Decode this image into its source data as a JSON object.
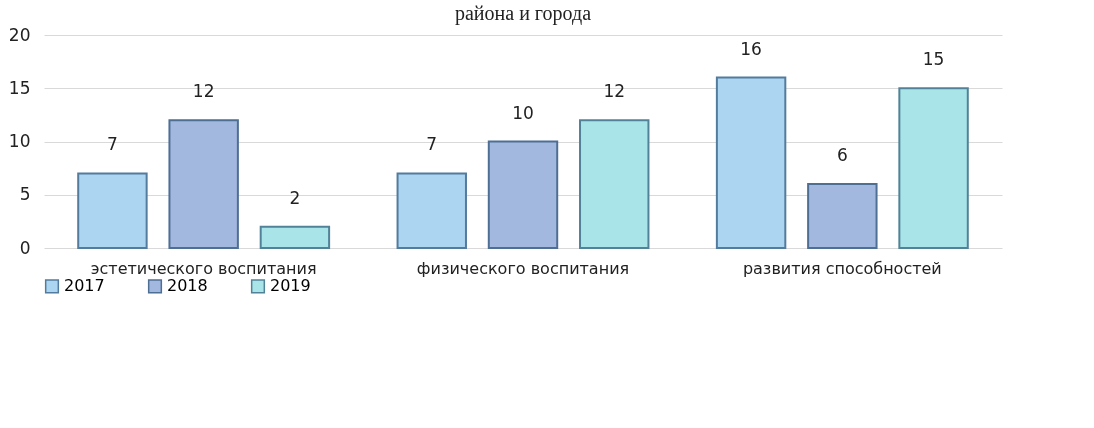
{
  "chart_data": {
    "type": "bar",
    "title": "района и города",
    "categories": [
      "эстетического воспитания",
      "физического воспитания",
      "развития способностей"
    ],
    "series": [
      {
        "name": "2017",
        "color": "#acd5f2",
        "values": [
          7,
          7,
          16
        ]
      },
      {
        "name": "2018",
        "color": "#a3b8de",
        "values": [
          12,
          10,
          6
        ]
      },
      {
        "name": "2019",
        "color": "#a9e5e8",
        "values": [
          2,
          12,
          15
        ]
      }
    ],
    "ylim": [
      0,
      20
    ],
    "yticks": [
      0,
      5,
      10,
      15,
      20
    ],
    "grid": "y",
    "legend": "bottom",
    "data_labels": true
  }
}
